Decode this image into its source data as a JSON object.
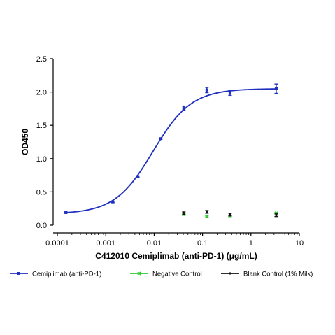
{
  "chart_data": {
    "type": "scatter",
    "xlabel": "C412010 Cemiplimab (anti-PD-1) (μg/mL)",
    "ylabel": "OD450",
    "x_scale": "log",
    "xlim": [
      0.0001,
      10
    ],
    "ylim": [
      0,
      2.5
    ],
    "x_ticks": [
      0.0001,
      0.001,
      0.01,
      0.1,
      1,
      10
    ],
    "x_tick_labels": [
      "0.0001",
      "0.001",
      "0.01",
      "0.1",
      "1",
      "10"
    ],
    "y_ticks": [
      0,
      0.5,
      1.0,
      1.5,
      2.0,
      2.5
    ],
    "y_tick_labels": [
      "0.0",
      "0.5",
      "1.0",
      "1.5",
      "2.0",
      "2.5"
    ],
    "grid": false,
    "legend_position": "bottom",
    "series": [
      {
        "name": "Cemiplimab (anti-PD-1)",
        "color": "#1f2fbf",
        "marker": "square",
        "fit": "4PL",
        "fit_params": {
          "bottom": 0.17,
          "top": 2.05,
          "ec50": 0.0095,
          "hill": 1.1
        },
        "x": [
          0.00015,
          0.0014,
          0.0046,
          0.0137,
          0.041,
          0.123,
          0.37,
          3.33
        ],
        "y": [
          0.19,
          0.35,
          0.73,
          1.3,
          1.76,
          2.03,
          1.99,
          2.05
        ],
        "err": [
          0.01,
          0.01,
          0.01,
          0.01,
          0.03,
          0.04,
          0.04,
          0.07
        ]
      },
      {
        "name": "Negative Control",
        "color": "#2ecc2e",
        "marker": "x",
        "x": [
          0.041,
          0.123,
          0.37,
          3.33
        ],
        "y": [
          0.16,
          0.13,
          0.14,
          0.18
        ],
        "err": [
          0.01,
          0.01,
          0.01,
          0.01
        ]
      },
      {
        "name": "Blank Control (1% Milk)",
        "color": "#111111",
        "marker": "diamond",
        "x": [
          0.041,
          0.123,
          0.37,
          3.33
        ],
        "y": [
          0.18,
          0.2,
          0.16,
          0.15
        ],
        "err": [
          0.02,
          0.02,
          0.02,
          0.02
        ]
      }
    ]
  }
}
